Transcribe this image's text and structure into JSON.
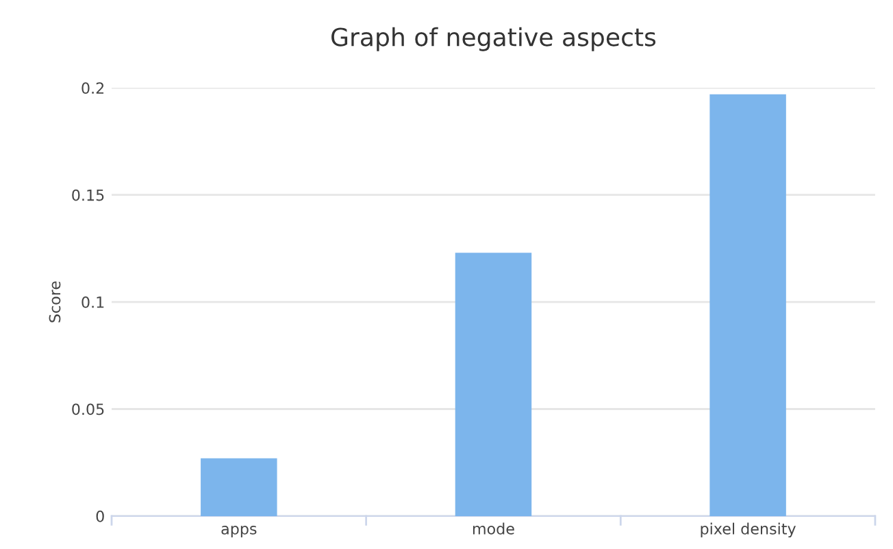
{
  "chart_data": {
    "type": "bar",
    "title": "Graph of negative aspects",
    "ylabel": "Score",
    "categories": [
      "apps",
      "mode",
      "pixel density"
    ],
    "values": [
      0.027,
      0.123,
      0.197
    ],
    "color": "#7cb5ec",
    "ylim": [
      0,
      0.2
    ],
    "yticks": [
      0,
      0.05,
      0.1,
      0.15,
      0.2
    ],
    "grid": "y",
    "legend": false
  }
}
